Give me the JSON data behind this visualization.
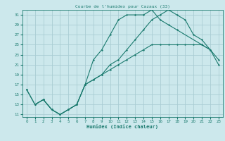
{
  "title": "Courbe de l'humidex pour Cazaux (33)",
  "xlabel": "Humidex (Indice chaleur)",
  "background_color": "#cce8ec",
  "grid_color": "#aacdd4",
  "line_color": "#1a7a6e",
  "xlim": [
    -0.5,
    23.5
  ],
  "ylim": [
    10.5,
    32
  ],
  "xticks": [
    0,
    1,
    2,
    3,
    4,
    5,
    6,
    7,
    8,
    9,
    10,
    11,
    12,
    13,
    14,
    15,
    16,
    17,
    18,
    19,
    20,
    21,
    22,
    23
  ],
  "yticks": [
    11,
    13,
    15,
    17,
    19,
    21,
    23,
    25,
    27,
    29,
    31
  ],
  "line1_x": [
    0,
    1,
    2,
    3,
    4,
    5,
    6,
    7,
    8,
    9,
    10,
    11,
    12,
    13,
    14,
    15,
    16,
    17,
    18,
    19,
    20,
    21,
    22,
    23
  ],
  "line1_y": [
    16,
    13,
    14,
    12,
    11,
    12,
    13,
    17,
    18,
    19,
    20,
    21,
    22,
    23,
    24,
    25,
    25,
    25,
    25,
    25,
    25,
    25,
    24,
    21
  ],
  "line2_x": [
    1,
    2,
    3,
    4,
    5,
    6,
    7,
    8,
    9,
    10,
    11,
    12,
    13,
    14,
    15,
    16,
    17,
    18,
    21,
    22
  ],
  "line2_y": [
    13,
    14,
    12,
    11,
    12,
    13,
    17,
    22,
    24,
    27,
    30,
    31,
    31,
    31,
    32,
    30,
    29,
    28,
    25,
    24
  ],
  "line3_x": [
    0,
    1,
    2,
    3,
    4,
    5,
    6,
    7,
    8,
    9,
    10,
    11,
    12,
    13,
    14,
    15,
    16,
    17,
    18,
    19,
    20,
    21,
    22,
    23
  ],
  "line3_y": [
    16,
    13,
    14,
    12,
    11,
    12,
    13,
    17,
    18,
    19,
    21,
    22,
    24,
    26,
    28,
    30,
    31,
    32,
    31,
    30,
    27,
    26,
    24,
    22
  ]
}
